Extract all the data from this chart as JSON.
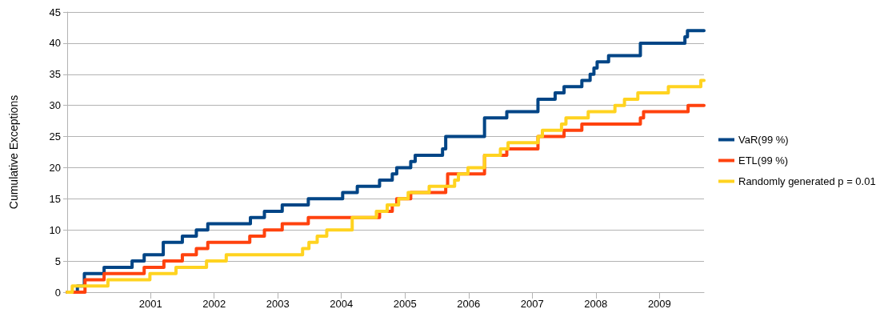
{
  "chart_data": {
    "type": "step",
    "ylabel": "Cumulative Exceptions",
    "xlim": [
      1999.69,
      2009.7
    ],
    "xticks": [
      2001,
      2002,
      2003,
      2004,
      2005,
      2006,
      2007,
      2008,
      2009
    ],
    "ylim": [
      0,
      45
    ],
    "yticks": [
      0,
      5,
      10,
      15,
      20,
      25,
      30,
      35,
      40,
      45
    ],
    "grid": "y",
    "legend": "right",
    "marker": "none",
    "line_style": "solid",
    "series": [
      {
        "name": "VaR(99 %)",
        "color": "#004586",
        "x": [
          1999.69,
          1999.85,
          1999.96,
          2000.27,
          2000.71,
          2000.9,
          2001.2,
          2001.5,
          2001.72,
          2001.9,
          2002.57,
          2002.79,
          2003.07,
          2003.48,
          2004.02,
          2004.25,
          2004.6,
          2004.8,
          2004.87,
          2005.09,
          2005.16,
          2005.59,
          2005.64,
          2006.25,
          2006.6,
          2007.09,
          2007.36,
          2007.5,
          2007.78,
          2007.91,
          2007.97,
          2008.02,
          2008.2,
          2008.7,
          2009.4,
          2009.44,
          2009.7
        ],
        "values": [
          0,
          1,
          3,
          4,
          5,
          6,
          8,
          9,
          10,
          11,
          12,
          13,
          14,
          15,
          16,
          17,
          18,
          19,
          20,
          21,
          22,
          23,
          25,
          28,
          29,
          31,
          32,
          33,
          34,
          35,
          36,
          37,
          38,
          40,
          41,
          42,
          42
        ]
      },
      {
        "name": "ETL(99 %)",
        "color": "#ff420e",
        "x": [
          1999.69,
          1999.97,
          2000.27,
          2000.9,
          2001.21,
          2001.5,
          2001.72,
          2001.9,
          2002.56,
          2002.79,
          2003.07,
          2003.48,
          2004.6,
          2004.8,
          2004.87,
          2005.09,
          2005.64,
          2005.67,
          2006.25,
          2006.6,
          2007.09,
          2007.5,
          2007.78,
          2008.7,
          2008.75,
          2009.45,
          2009.7
        ],
        "values": [
          0,
          2,
          3,
          4,
          5,
          6,
          7,
          8,
          9,
          10,
          11,
          12,
          13,
          14,
          15,
          16,
          17,
          19,
          22,
          23,
          25,
          26,
          27,
          28,
          29,
          30,
          30
        ]
      },
      {
        "name": "Randomly generated p = 0.01",
        "color": "#ffd320",
        "x": [
          1999.69,
          1999.77,
          2000.33,
          2000.99,
          2001.4,
          2001.88,
          2002.19,
          2003.39,
          2003.49,
          2003.62,
          2003.77,
          2004.17,
          2004.55,
          2004.72,
          2004.9,
          2005.05,
          2005.38,
          2005.78,
          2005.84,
          2005.99,
          2006.25,
          2006.5,
          2006.62,
          2007.09,
          2007.16,
          2007.46,
          2007.53,
          2007.88,
          2008.3,
          2008.45,
          2008.66,
          2009.14,
          2009.65,
          2009.7
        ],
        "values": [
          0,
          1,
          2,
          3,
          4,
          5,
          6,
          7,
          8,
          9,
          10,
          12,
          13,
          14,
          15,
          16,
          17,
          18,
          19,
          20,
          22,
          23,
          24,
          25,
          26,
          27,
          28,
          29,
          30,
          31,
          32,
          33,
          34,
          34
        ]
      }
    ]
  }
}
